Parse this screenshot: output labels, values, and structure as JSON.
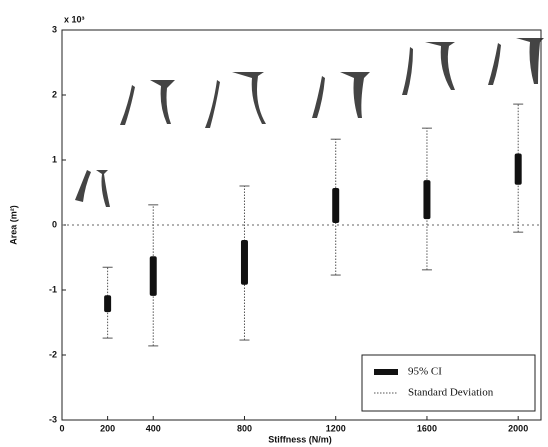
{
  "chart_data": {
    "type": "errorbar",
    "x_label": "Stiffness (N/m)",
    "y_label": "Area (m²)",
    "y_multiplier": "x 10³",
    "x": [
      200,
      400,
      800,
      1200,
      1600,
      2000
    ],
    "series": [
      {
        "name": "95% CI",
        "color": "#111111",
        "lower": [
          -1.34,
          -1.09,
          -0.92,
          0.03,
          0.09,
          0.62
        ],
        "upper": [
          -1.08,
          -0.48,
          -0.23,
          0.57,
          0.69,
          1.1
        ]
      },
      {
        "name": "Standard Deviation",
        "color": "#555555",
        "lower": [
          -1.74,
          -1.86,
          -1.77,
          -0.77,
          -0.69,
          -0.11
        ],
        "upper": [
          -0.65,
          0.31,
          0.6,
          1.32,
          1.49,
          1.86
        ]
      }
    ],
    "xlim": [
      0,
      2100
    ],
    "xticks": [
      0,
      200,
      400,
      800,
      1200,
      1600,
      2000
    ],
    "ylim": [
      -3,
      3
    ],
    "yticks": [
      -3,
      -2,
      -1,
      0,
      1,
      2,
      3
    ],
    "legend": "lower-right"
  }
}
